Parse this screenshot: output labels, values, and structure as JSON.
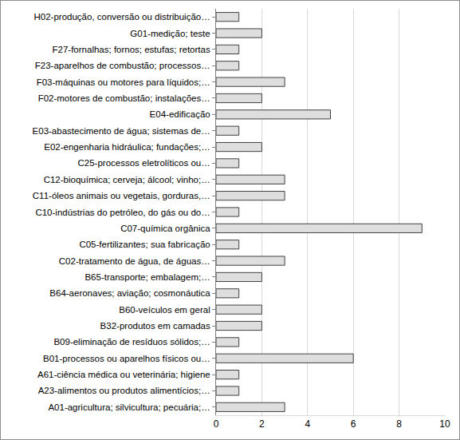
{
  "chart_data": {
    "type": "bar",
    "orientation": "horizontal",
    "categories": [
      "A01-agricultura; silvicultura; pecuária;…",
      "A23-alimentos ou produtos alimentícios;…",
      "A61-ciência médica ou veterinária; higiene",
      "B01-processos ou aparelhos físicos ou…",
      "B09-eliminação de resíduos sólidos;…",
      "B32-produtos em camadas",
      "B60-veículos em geral",
      "B64-aeronaves; aviação; cosmonáutica",
      "B65-transporte; embalagem;…",
      "C02-tratamento de água, de águas…",
      "C05-fertilizantes; sua fabricação",
      "C07-química orgânica",
      "C10-indústrias do petróleo, do gás ou do…",
      "C11-óleos animais ou vegetais, gorduras,…",
      "C12-bioquímica; cerveja; álcool; vinho;…",
      "C25-processos eletrolíticos ou…",
      "E02-engenharia hidráulica; fundações;…",
      "E03-abastecimento de água; sistemas de…",
      "E04-edificação",
      "F02-motores de combustão; instalações…",
      "F03-máquinas ou motores para líquidos;…",
      "F23-aparelhos de combustão; processos…",
      "F27-fornalhas; fornos; estufas; retortas",
      "G01-medição; teste",
      "H02-produção, conversão ou distribuição…"
    ],
    "values": [
      3,
      1,
      1,
      6,
      1,
      2,
      2,
      1,
      2,
      3,
      1,
      9,
      1,
      3,
      3,
      1,
      2,
      1,
      5,
      2,
      3,
      1,
      1,
      2,
      1
    ],
    "color": "#dedede",
    "xlim": [
      0,
      10
    ],
    "xticks": [
      0,
      2,
      4,
      6,
      8,
      10
    ],
    "grid": true
  }
}
